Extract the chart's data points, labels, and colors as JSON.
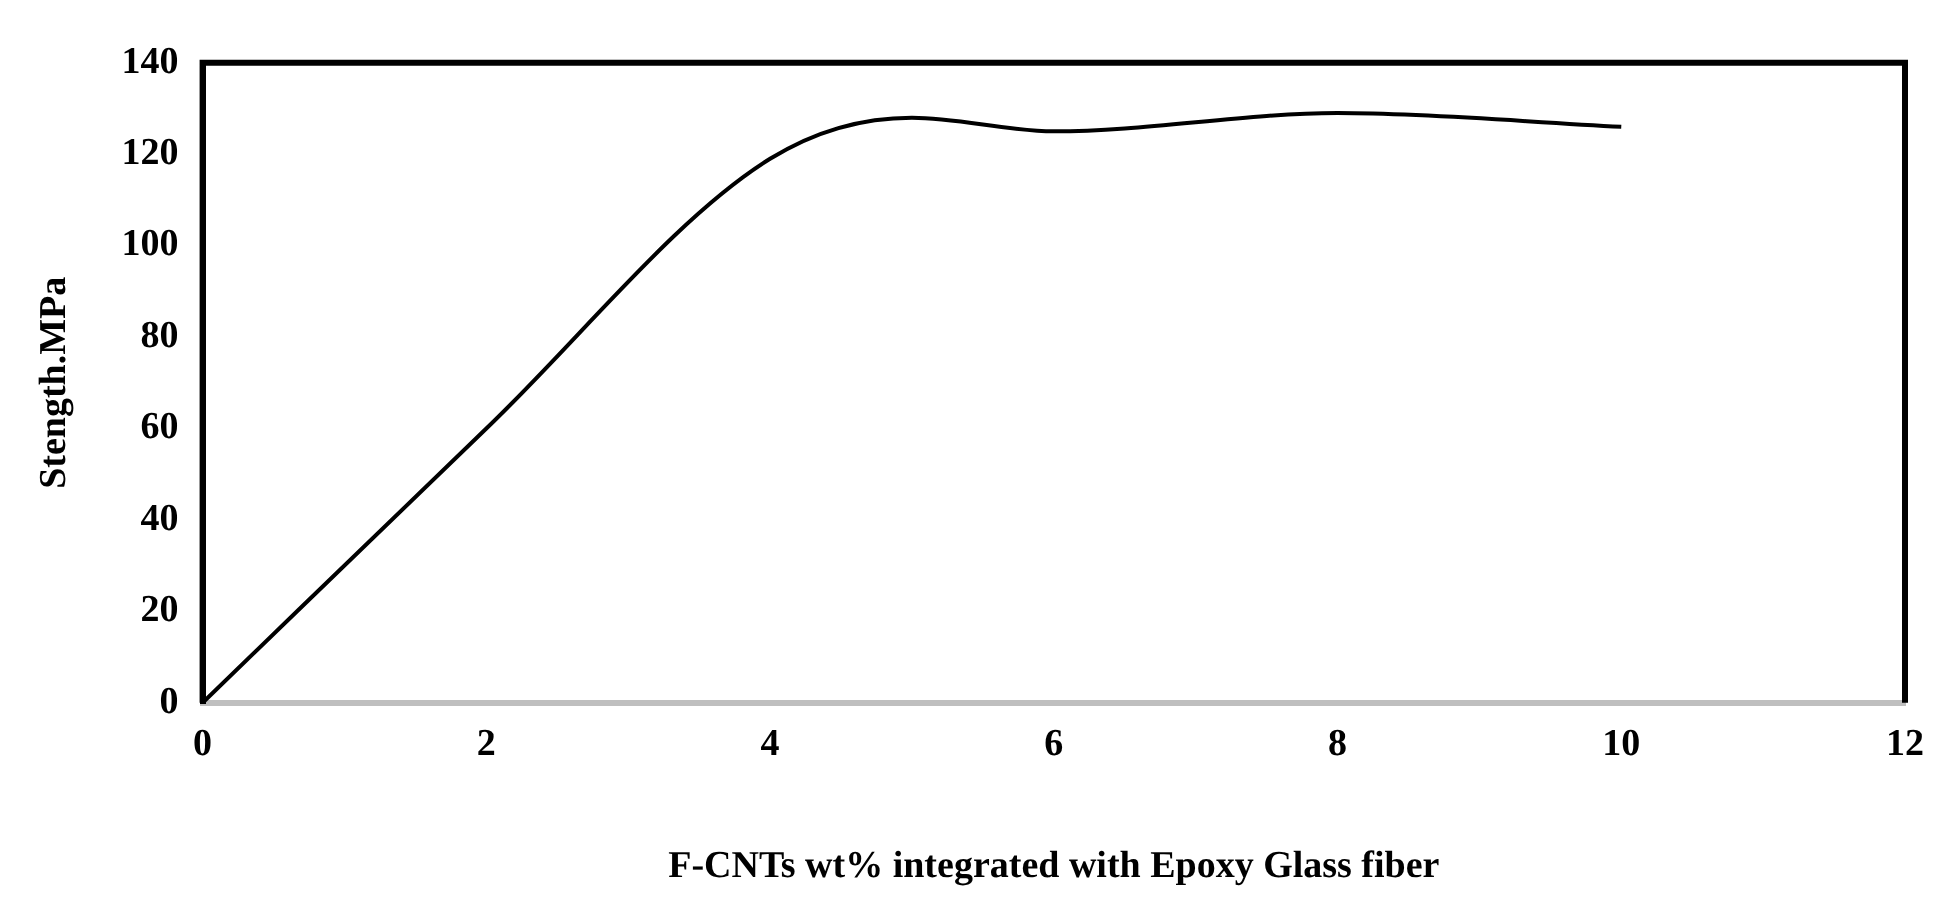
{
  "chart_data": {
    "type": "line",
    "xlabel": "F-CNTs wt% integrated with Epoxy Glass fiber",
    "ylabel": "Stength.MPa",
    "x": [
      0,
      2,
      4,
      5,
      6,
      8,
      10
    ],
    "series": [
      {
        "color": "#000000",
        "values": [
          0,
          60,
          119,
          128,
          125,
          129,
          126
        ]
      }
    ],
    "xlim": [
      0,
      12
    ],
    "xticks": [
      0,
      2,
      4,
      6,
      8,
      10,
      12
    ],
    "ylim": [
      0,
      140
    ],
    "yticks": [
      0,
      20,
      40,
      60,
      80,
      100,
      120,
      140
    ],
    "grid": false,
    "legend": false,
    "marker": "none",
    "line_style": "solid"
  }
}
